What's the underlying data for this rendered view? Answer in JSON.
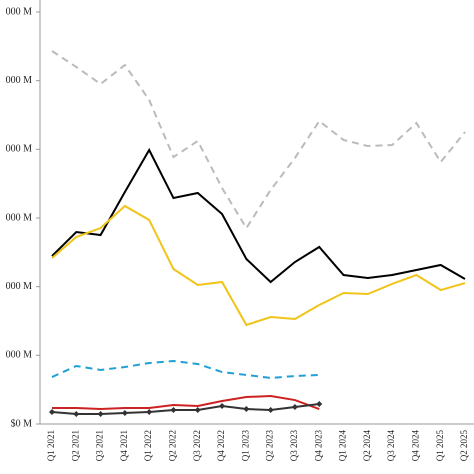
{
  "chart_data": {
    "type": "line",
    "categories": [
      "Q1 2021",
      "Q2 2021",
      "Q3 2021",
      "Q4 2021",
      "Q1 2022",
      "Q2 2022",
      "Q3 2022",
      "Q4 2022",
      "Q1 2023",
      "Q2 2023",
      "Q3 2023",
      "Q4 2023",
      "Q1 2024",
      "Q2 2024",
      "Q3 2024",
      "Q4 2024",
      "Q1 2025",
      "Q2 2025"
    ],
    "ylim": [
      0,
      6000
    ],
    "yticks": [
      {
        "value": 0,
        "label": "$0 M"
      },
      {
        "value": 1000,
        "label": "000 M"
      },
      {
        "value": 2000,
        "label": "000 M"
      },
      {
        "value": 3000,
        "label": "000 M"
      },
      {
        "value": 4000,
        "label": "000 M"
      },
      {
        "value": 5000,
        "label": "000 M"
      },
      {
        "value": 6000,
        "label": "000 M"
      }
    ],
    "series": [
      {
        "color": "#bbbbbb",
        "dash": true,
        "values": [
          5432,
          5199,
          4951,
          5228,
          4718,
          3888,
          4121,
          3437,
          2854,
          3408,
          3874,
          4412,
          4136,
          4048,
          4063,
          4383,
          3815,
          4252
        ]
      },
      {
        "color": "#000000",
        "values": [
          2446,
          2796,
          2752,
          3378,
          3990,
          3291,
          3364,
          3058,
          2403,
          2068,
          2359,
          2578,
          2170,
          2126,
          2170,
          2243,
          2316,
          2112
        ]
      },
      {
        "color": "#f0c419",
        "values": [
          2417,
          2723,
          2854,
          3175,
          2971,
          2257,
          2024,
          2068,
          1442,
          1558,
          1529,
          1733,
          1908,
          1893,
          2039,
          2170,
          1951,
          2053
        ]
      },
      {
        "color": "#1fa0d8",
        "dash": true,
        "values": [
          684,
          845,
          787,
          830,
          888,
          917,
          874,
          757,
          714,
          670,
          699,
          714,
          null,
          null,
          null,
          null,
          null,
          null
        ]
      },
      {
        "color": "#cc2222",
        "values": [
          233,
          233,
          218,
          233,
          233,
          277,
          262,
          335,
          393,
          408,
          349,
          218,
          null,
          null,
          null,
          null,
          null,
          null
        ]
      },
      {
        "color": "#333333",
        "markers": true,
        "values": [
          175,
          146,
          146,
          160,
          175,
          204,
          204,
          262,
          218,
          204,
          248,
          291,
          null,
          null,
          null,
          null,
          null,
          null
        ]
      }
    ]
  }
}
